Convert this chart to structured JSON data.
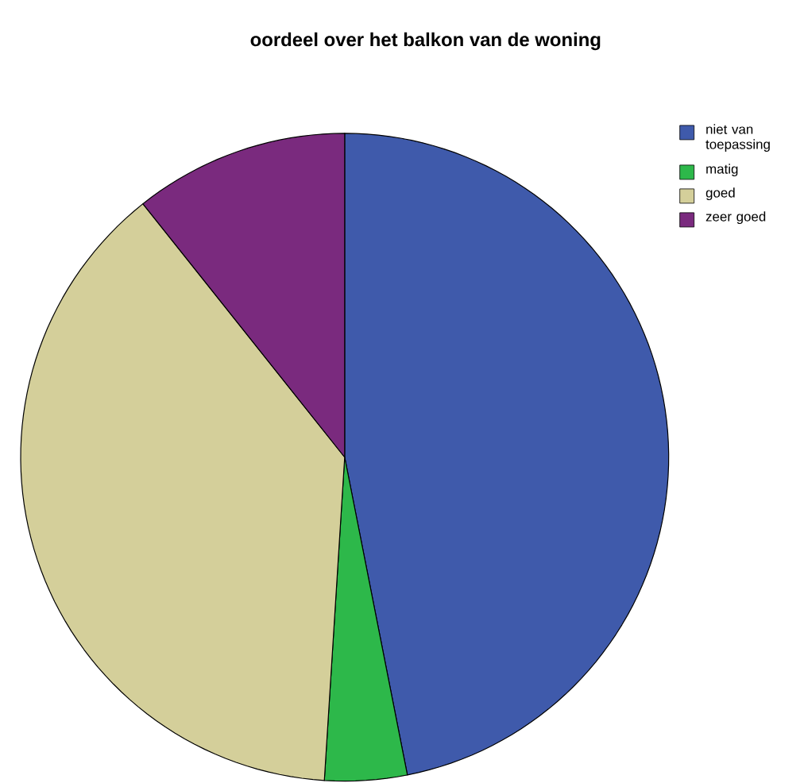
{
  "chart_data": {
    "type": "pie",
    "title": "oordeel over het balkon van de woning",
    "categories": [
      "niet van toepassing",
      "matig",
      "goed",
      "zeer goed"
    ],
    "values": [
      46.9,
      4.1,
      38.3,
      10.7
    ],
    "colors": [
      "#3f5aab",
      "#2db84a",
      "#d4cf9a",
      "#7a2a7e"
    ],
    "legend": "top right"
  }
}
